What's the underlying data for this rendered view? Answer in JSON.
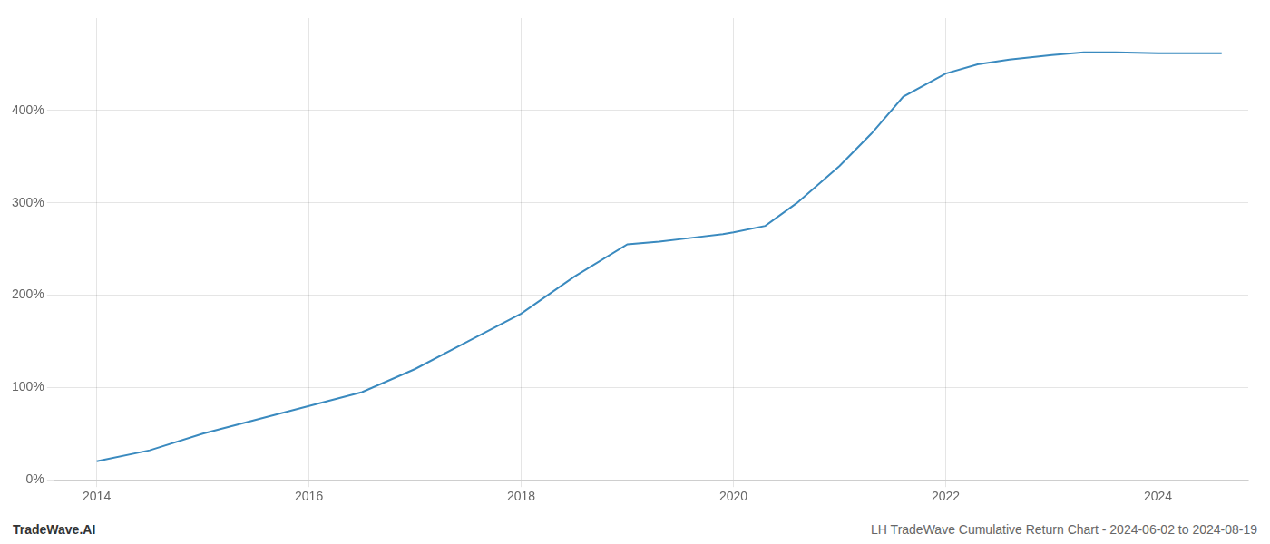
{
  "chart_data": {
    "type": "line",
    "x": [
      2014.0,
      2014.5,
      2015.0,
      2015.5,
      2016.0,
      2016.5,
      2017.0,
      2017.5,
      2018.0,
      2018.5,
      2019.0,
      2019.3,
      2019.6,
      2019.9,
      2020.0,
      2020.3,
      2020.6,
      2021.0,
      2021.3,
      2021.6,
      2022.0,
      2022.3,
      2022.6,
      2023.0,
      2023.3,
      2023.6,
      2024.0,
      2024.3,
      2024.6
    ],
    "values": [
      20,
      32,
      50,
      65,
      80,
      95,
      120,
      150,
      180,
      220,
      255,
      258,
      262,
      266,
      268,
      275,
      300,
      340,
      375,
      415,
      440,
      450,
      455,
      460,
      463,
      463,
      462,
      462,
      462
    ],
    "color": "#3a8abf",
    "xlim": [
      2013.6,
      2024.85
    ],
    "xticks": [
      2014,
      2016,
      2018,
      2020,
      2022,
      2024
    ],
    "ylim": [
      0,
      500
    ],
    "yticks": [
      {
        "value": 0,
        "label": "0%"
      },
      {
        "value": 100,
        "label": "100%"
      },
      {
        "value": 200,
        "label": "200%"
      },
      {
        "value": 300,
        "label": "300%"
      },
      {
        "value": 400,
        "label": "400%"
      }
    ],
    "grid": true,
    "annotations": [
      "TradeWave.AI",
      "LH TradeWave Cumulative Return Chart - 2024-06-02 to 2024-08-19"
    ]
  }
}
